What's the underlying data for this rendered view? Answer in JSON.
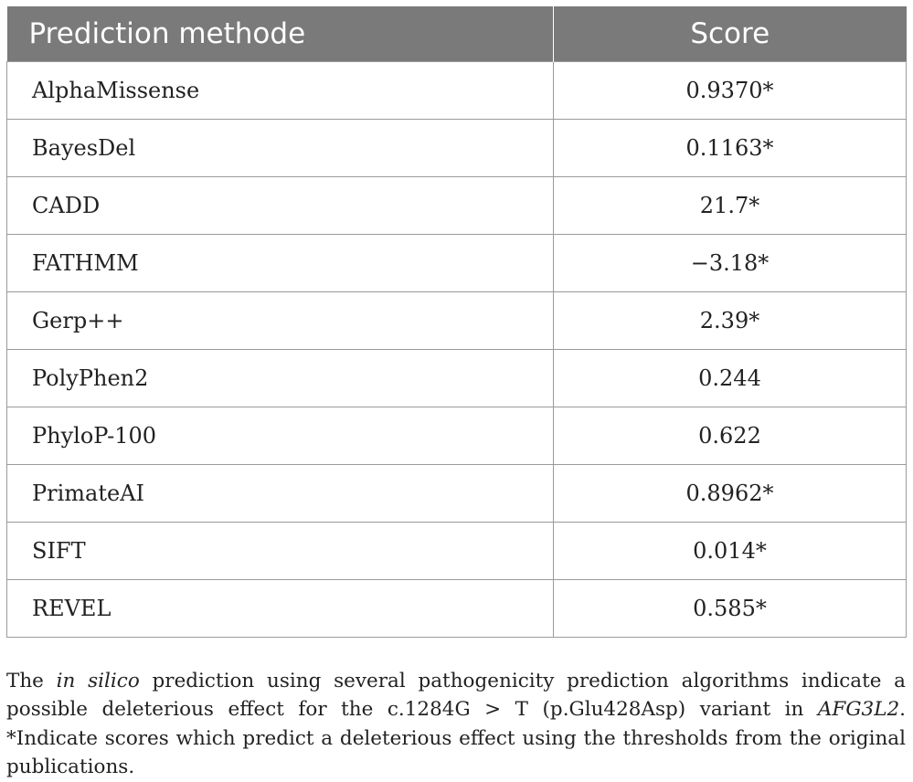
{
  "table": {
    "headers": [
      "Prediction methode",
      "Score"
    ],
    "rows": [
      {
        "method": "AlphaMissense",
        "score": "0.9370*"
      },
      {
        "method": "BayesDel",
        "score": "0.1163*"
      },
      {
        "method": "CADD",
        "score": "21.7*"
      },
      {
        "method": "FATHMM",
        "score": "−3.18*"
      },
      {
        "method": "Gerp++",
        "score": "2.39*"
      },
      {
        "method": "PolyPhen2",
        "score": "0.244"
      },
      {
        "method": "PhyloP-100",
        "score": "0.622"
      },
      {
        "method": "PrimateAI",
        "score": "0.8962*"
      },
      {
        "method": "SIFT",
        "score": "0.014*"
      },
      {
        "method": "REVEL",
        "score": "0.585*"
      }
    ]
  },
  "caption": {
    "part1": "The ",
    "italic1": "in silico",
    "part2": " prediction using several pathogenicity prediction algorithms indicate a possible deleterious effect for the c.1284G > T (p.Glu428Asp) variant in ",
    "italic2": "AFG3L2",
    "part3": ". *Indicate scores which predict a deleterious effect using the thresholds from the original publications."
  }
}
